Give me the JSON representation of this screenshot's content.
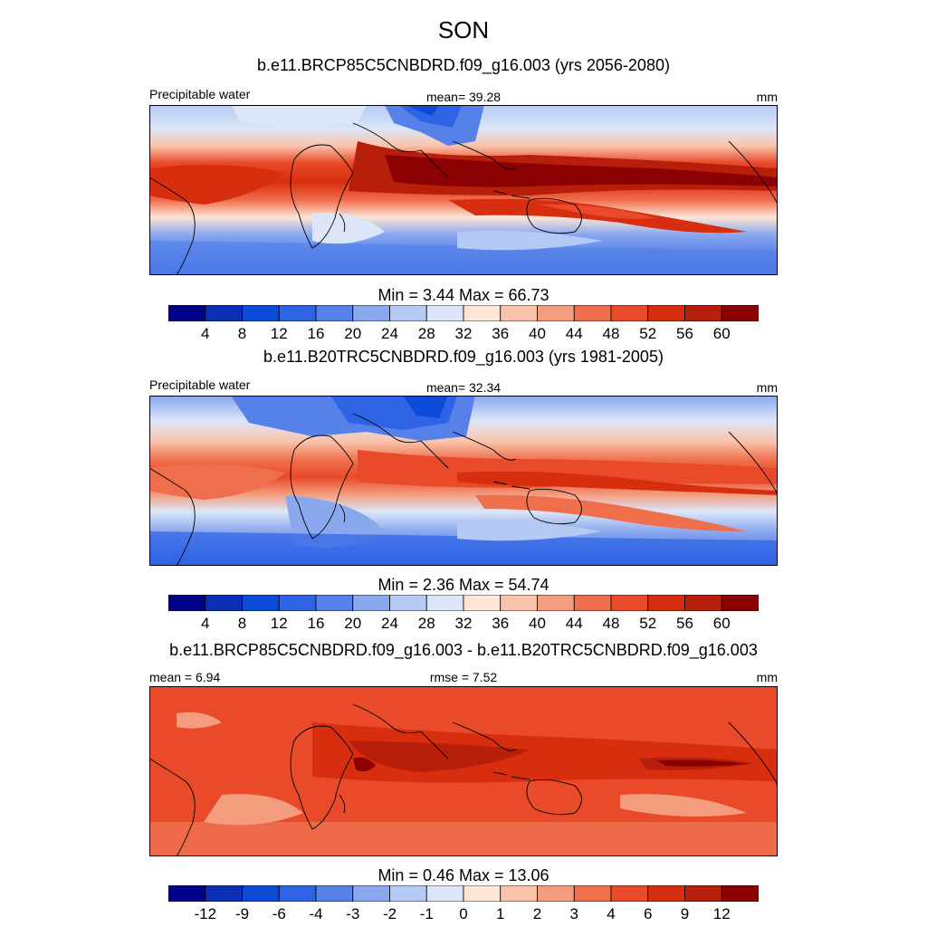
{
  "title": "SON",
  "palette": [
    "#00008b",
    "#0a2fb4",
    "#0c4ad8",
    "#2e63e6",
    "#5681e8",
    "#8aa8ee",
    "#b4c9f4",
    "#dce6f8",
    "#fde6d6",
    "#f9c3aa",
    "#f49c7e",
    "#ef6f4d",
    "#e84a2a",
    "#d82e10",
    "#b71f0a",
    "#8b0000"
  ],
  "panels": [
    {
      "subtitle": "b.e11.BRCP85C5CNBDRD.f09_g16.003 (yrs 2056-2080)",
      "left_label": "Precipitable water",
      "center_label": "mean=  39.28",
      "right_label": "mm",
      "min_max": "Min =   3.44 Max =  66.73",
      "colorbar_ticks": [
        "4",
        "8",
        "12",
        "16",
        "20",
        "24",
        "28",
        "32",
        "36",
        "40",
        "44",
        "48",
        "52",
        "56",
        "60"
      ],
      "field_variant": "future"
    },
    {
      "subtitle": "b.e11.B20TRC5CNBDRD.f09_g16.003 (yrs 1981-2005)",
      "left_label": "Precipitable water",
      "center_label": "mean=  32.34",
      "right_label": "mm",
      "min_max": "Min =   2.36 Max =  54.74",
      "colorbar_ticks": [
        "4",
        "8",
        "12",
        "16",
        "20",
        "24",
        "28",
        "32",
        "36",
        "40",
        "44",
        "48",
        "52",
        "56",
        "60"
      ],
      "field_variant": "historical"
    },
    {
      "subtitle": "b.e11.BRCP85C5CNBDRD.f09_g16.003 - b.e11.B20TRC5CNBDRD.f09_g16.003",
      "left_label": "mean =   6.94",
      "center_label": "rmse =   7.52",
      "right_label": "mm",
      "min_max": "Min =   0.46 Max =  13.06",
      "colorbar_ticks": [
        "-12",
        "-9",
        "-6",
        "-4",
        "-3",
        "-2",
        "-1",
        "0",
        "1",
        "2",
        "3",
        "4",
        "6",
        "9",
        "12"
      ],
      "field_variant": "difference"
    }
  ]
}
